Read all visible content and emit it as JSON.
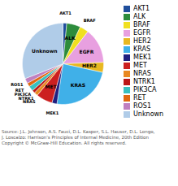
{
  "chart_data": {
    "type": "pie",
    "categories": [
      "AKT1",
      "ALK",
      "BRAF",
      "EGFR",
      "HER2",
      "KRAS",
      "MEK1",
      "MET",
      "NRAS",
      "NTRK1",
      "PIK3CA",
      "RET",
      "ROS1",
      "Unknown"
    ],
    "values": [
      1.5,
      5.5,
      3.5,
      14.0,
      4.0,
      24.0,
      2.0,
      6.5,
      1.5,
      1.2,
      2.0,
      1.5,
      2.0,
      31.0
    ],
    "colors": [
      "#1f4e9c",
      "#2d8c3c",
      "#f0e020",
      "#e8a0e0",
      "#e8b820",
      "#40b0e8",
      "#202080",
      "#cc2020",
      "#e88820",
      "#bb1818",
      "#38c0c0",
      "#e06810",
      "#c080c0",
      "#b0cce8"
    ],
    "legend": "right",
    "annotations": [
      "Source: J.L. Johnson, A.S. Fauci, D.L. Kasper, S.L. Hauser, D.L. Longo,\nJ. Loscalzo: Harrison's Principles of Internal Medicine, 20th Edition\nCopyright © McGraw-Hill Education. All rights reserved."
    ]
  }
}
